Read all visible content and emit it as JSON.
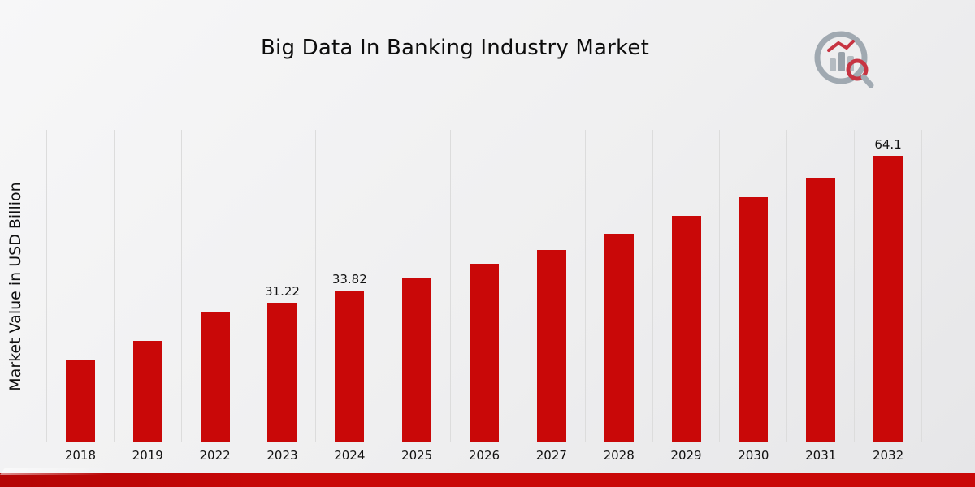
{
  "page": {
    "brand_logo": "market-research-chart-logo"
  },
  "chart_data": {
    "type": "bar",
    "title": "Big Data In Banking Industry Market",
    "xlabel": "",
    "ylabel": "Market Value in USD Billion",
    "ylim": [
      0,
      70
    ],
    "grid": "vertical-only",
    "legend": "none",
    "bar_color": "#c90808",
    "categories": [
      "2018",
      "2019",
      "2022",
      "2023",
      "2024",
      "2025",
      "2026",
      "2027",
      "2028",
      "2029",
      "2030",
      "2031",
      "2032"
    ],
    "values": [
      18.2,
      22.6,
      28.9,
      31.22,
      33.82,
      36.6,
      39.9,
      43.0,
      46.6,
      50.6,
      54.9,
      59.2,
      64.1
    ],
    "data_labels": [
      "",
      "",
      "",
      "31.22",
      "33.82",
      "",
      "",
      "",
      "",
      "",
      "",
      "",
      "64.1"
    ]
  }
}
